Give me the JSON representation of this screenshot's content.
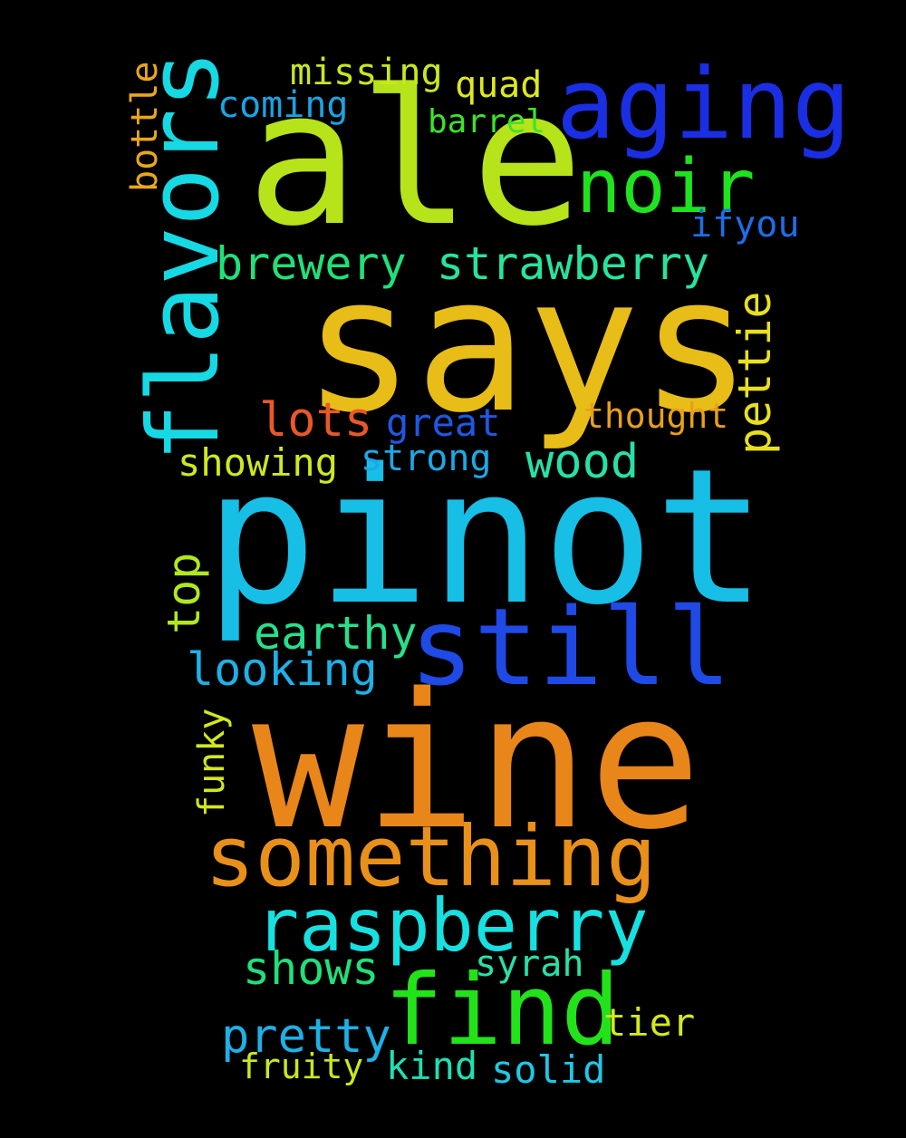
{
  "word_cloud": {
    "background": "#000000",
    "words": [
      {
        "text": "ale",
        "color": "#b6e31a"
      },
      {
        "text": "says",
        "color": "#e8bd18"
      },
      {
        "text": "pinot",
        "color": "#17bee6"
      },
      {
        "text": "wine",
        "color": "#e8861a"
      },
      {
        "text": "aging",
        "color": "#1a2fe3"
      },
      {
        "text": "flavors",
        "color": "#16d9e3"
      },
      {
        "text": "noir",
        "color": "#1ee31e"
      },
      {
        "text": "still",
        "color": "#1f4ae6"
      },
      {
        "text": "something",
        "color": "#e8901a"
      },
      {
        "text": "raspberry",
        "color": "#17e0e0"
      },
      {
        "text": "find",
        "color": "#22e31a"
      },
      {
        "text": "brewery",
        "color": "#20e07a"
      },
      {
        "text": "strawberry",
        "color": "#28e39c"
      },
      {
        "text": "missing",
        "color": "#c8e81e"
      },
      {
        "text": "quad",
        "color": "#dde81e"
      },
      {
        "text": "coming",
        "color": "#1ba3e3"
      },
      {
        "text": "barrel",
        "color": "#3de32a"
      },
      {
        "text": "bottle",
        "color": "#e8a81a"
      },
      {
        "text": "ifyou",
        "color": "#1e6ee6"
      },
      {
        "text": "lots",
        "color": "#e8582a"
      },
      {
        "text": "great",
        "color": "#1e58e3"
      },
      {
        "text": "thought",
        "color": "#e8a01a"
      },
      {
        "text": "pettie",
        "color": "#e8e01e"
      },
      {
        "text": "showing",
        "color": "#cfe81e"
      },
      {
        "text": "strong",
        "color": "#1ea8e6"
      },
      {
        "text": "wood",
        "color": "#28e0a8"
      },
      {
        "text": "top",
        "color": "#b0e81e"
      },
      {
        "text": "earthy",
        "color": "#28e08c"
      },
      {
        "text": "looking",
        "color": "#1eb0e6"
      },
      {
        "text": "funky",
        "color": "#d2e81e"
      },
      {
        "text": "shows",
        "color": "#20e07c"
      },
      {
        "text": "syrah",
        "color": "#28e0a8"
      },
      {
        "text": "pretty",
        "color": "#1eb0e6"
      },
      {
        "text": "tier",
        "color": "#d2e81e"
      },
      {
        "text": "fruity",
        "color": "#c8e81e"
      },
      {
        "text": "kind",
        "color": "#1ee0b4"
      },
      {
        "text": "solid",
        "color": "#1ec8e6"
      }
    ]
  }
}
